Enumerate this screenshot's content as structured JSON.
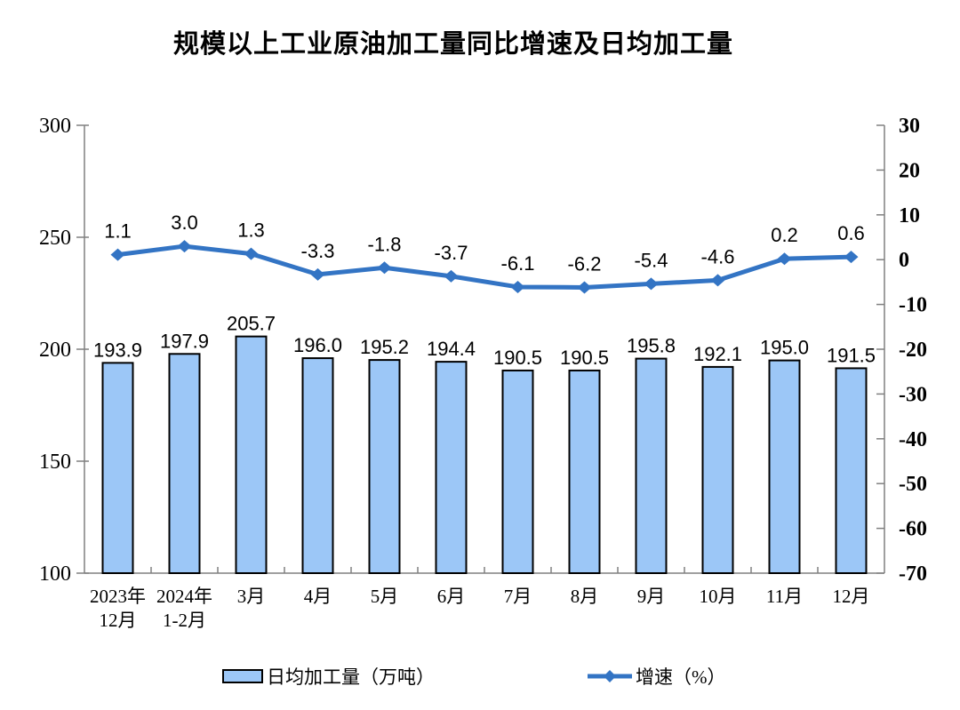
{
  "chart_data": {
    "type": "bar+line combo",
    "title": "规模以上工业原油加工量同比增速及日均加工量",
    "categories": [
      [
        "2023年",
        "12月"
      ],
      [
        "2024年",
        "1-2月"
      ],
      [
        "3月"
      ],
      [
        "4月"
      ],
      [
        "5月"
      ],
      [
        "6月"
      ],
      [
        "7月"
      ],
      [
        "8月"
      ],
      [
        "9月"
      ],
      [
        "10月"
      ],
      [
        "11月"
      ],
      [
        "12月"
      ]
    ],
    "series": [
      {
        "name": "日均加工量（万吨）",
        "type": "bar",
        "axis": "left",
        "values": [
          193.9,
          197.9,
          205.7,
          196.0,
          195.2,
          194.4,
          190.5,
          190.5,
          195.8,
          192.1,
          195.0,
          191.5
        ]
      },
      {
        "name": "增速（%）",
        "type": "line",
        "axis": "right",
        "values": [
          1.1,
          3.0,
          1.3,
          -3.3,
          -1.8,
          -3.7,
          -6.1,
          -6.2,
          -5.4,
          -4.6,
          0.2,
          0.6
        ]
      }
    ],
    "left_axis": {
      "min": 100,
      "max": 300,
      "ticks": [
        300,
        250,
        200,
        150,
        100
      ]
    },
    "right_axis": {
      "min": -70,
      "max": 30,
      "ticks": [
        30,
        20,
        10,
        0,
        -10,
        -20,
        -30,
        -40,
        -50,
        -60,
        -70
      ]
    },
    "grid": false,
    "legend_position": "bottom",
    "value_label_decimals": 1
  },
  "colors": {
    "bar_fill": "#9CC7F7",
    "bar_border": "#000000",
    "line": "#3374C4",
    "axis": "#808080",
    "text": "#000000"
  }
}
